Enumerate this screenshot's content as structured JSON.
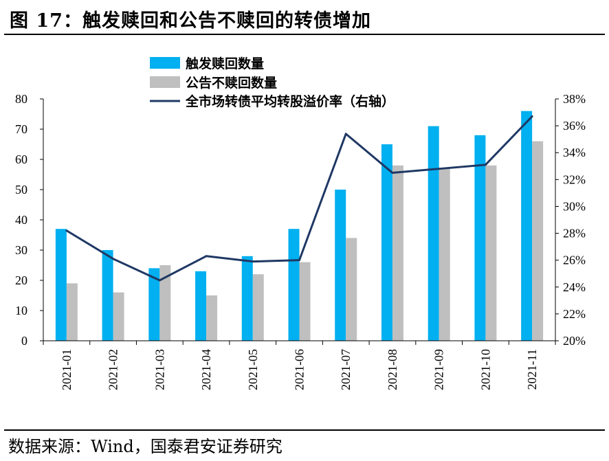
{
  "title": "图 17：触发赎回和公告不赎回的转债增加",
  "source": "数据来源：Wind，国泰君安证券研究",
  "chart_data": {
    "type": "bar",
    "title": "",
    "xlabel": "",
    "ylabel": "",
    "categories": [
      "2021-01",
      "2021-02",
      "2021-03",
      "2021-04",
      "2021-05",
      "2021-06",
      "2021-07",
      "2021-08",
      "2021-09",
      "2021-10",
      "2021-11"
    ],
    "series": [
      {
        "name": "触发赎回数量",
        "type": "bar",
        "axis": "left",
        "color": "#00b0f0",
        "values": [
          37,
          30,
          24,
          23,
          28,
          37,
          50,
          65,
          71,
          68,
          76
        ]
      },
      {
        "name": "公告不赎回数量",
        "type": "bar",
        "axis": "left",
        "color": "#bfbfbf",
        "values": [
          19,
          16,
          25,
          15,
          22,
          26,
          34,
          58,
          57,
          58,
          66
        ]
      },
      {
        "name": "全市场转债平均转股溢价率（右轴）",
        "type": "line",
        "axis": "right",
        "color": "#1f3864",
        "values": [
          28.2,
          26.1,
          24.5,
          26.3,
          25.9,
          26.0,
          35.4,
          32.5,
          32.8,
          33.1,
          36.7
        ]
      }
    ],
    "ylim": [
      0,
      80
    ],
    "yticks": [
      "0",
      "10",
      "20",
      "30",
      "40",
      "50",
      "60",
      "70",
      "80"
    ],
    "y2lim": [
      20,
      38
    ],
    "y2ticks": [
      "20%",
      "22%",
      "24%",
      "26%",
      "28%",
      "30%",
      "32%",
      "34%",
      "36%",
      "38%"
    ],
    "legend": "top",
    "grid": false
  }
}
